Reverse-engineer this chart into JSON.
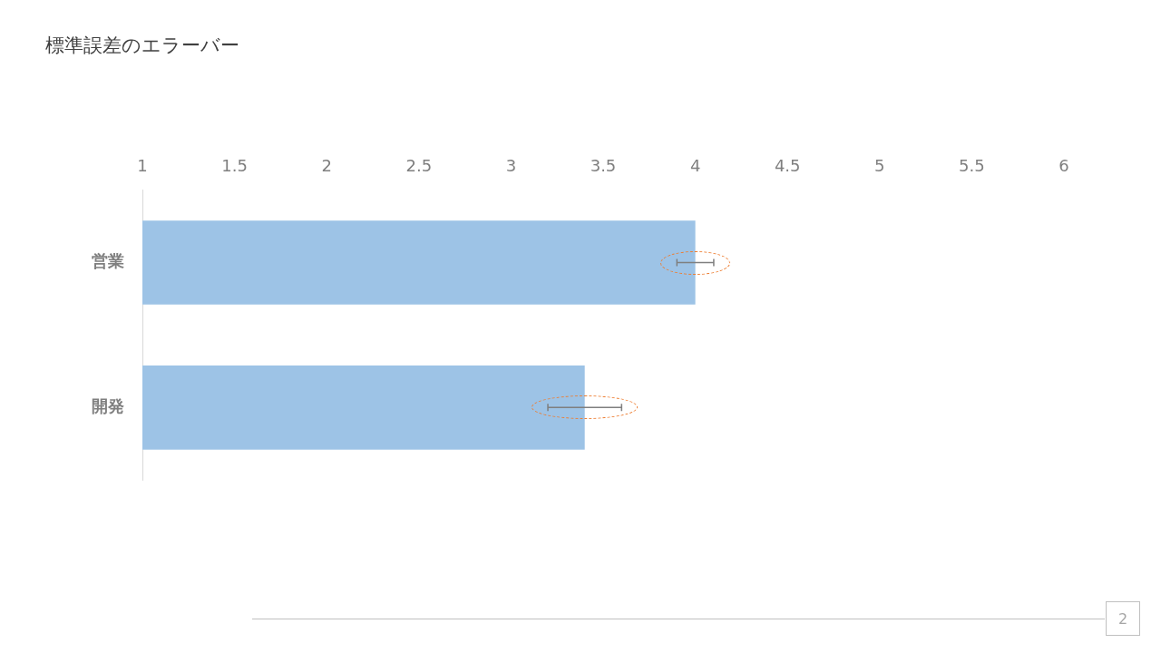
{
  "chart_data": {
    "type": "bar",
    "orientation": "horizontal",
    "title": "標準誤差のエラーバー",
    "categories": [
      "営業",
      "開発"
    ],
    "values": [
      4.0,
      3.4
    ],
    "errors": [
      0.1,
      0.2
    ],
    "color": "#9dc3e6",
    "xlim": [
      1,
      6
    ],
    "xticks": [
      1,
      1.5,
      2,
      2.5,
      3,
      3.5,
      4,
      4.5,
      5,
      5.5,
      6
    ],
    "grid": false,
    "legend": false,
    "annotations": [
      "2"
    ]
  }
}
